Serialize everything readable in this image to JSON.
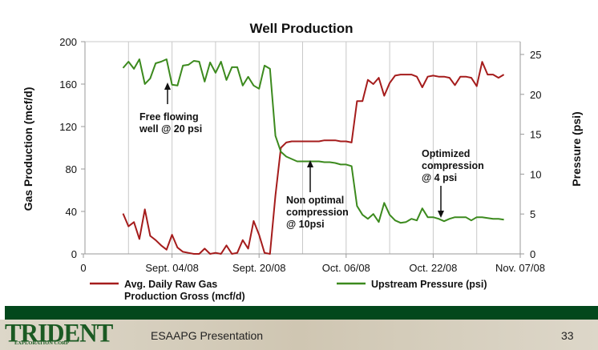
{
  "chart_data": {
    "type": "line",
    "title": "Well Production",
    "ylabel": "Gas Production (mcf/d)",
    "y2label": "Pressure (psi)",
    "ylim": [
      0,
      200
    ],
    "y2lim": [
      0,
      25
    ],
    "yticks": [
      "0",
      "40",
      "80",
      "120",
      "160",
      "200"
    ],
    "y2ticks": [
      "0",
      "5",
      "10",
      "15",
      "20",
      "25"
    ],
    "xlim": [
      "2008-08-19",
      "2008-11-07"
    ],
    "xticks": [
      "0",
      "Sept. 04/08",
      "Sept. 20/08",
      "Oct. 06/08",
      "Oct. 22/08",
      "Nov. 07/08"
    ],
    "grid": "vertical",
    "legend_position": "bottom",
    "x": [
      "2008-08-26",
      "2008-08-27",
      "2008-08-28",
      "2008-08-29",
      "2008-08-30",
      "2008-08-31",
      "2008-09-01",
      "2008-09-02",
      "2008-09-03",
      "2008-09-04",
      "2008-09-05",
      "2008-09-06",
      "2008-09-07",
      "2008-09-08",
      "2008-09-09",
      "2008-09-10",
      "2008-09-11",
      "2008-09-12",
      "2008-09-13",
      "2008-09-14",
      "2008-09-15",
      "2008-09-16",
      "2008-09-17",
      "2008-09-18",
      "2008-09-19",
      "2008-09-20",
      "2008-09-21",
      "2008-09-22",
      "2008-09-23",
      "2008-09-24",
      "2008-09-25",
      "2008-09-26",
      "2008-09-27",
      "2008-09-28",
      "2008-09-29",
      "2008-09-30",
      "2008-10-01",
      "2008-10-02",
      "2008-10-03",
      "2008-10-04",
      "2008-10-05",
      "2008-10-06",
      "2008-10-07",
      "2008-10-08",
      "2008-10-09",
      "2008-10-10",
      "2008-10-11",
      "2008-10-12",
      "2008-10-13",
      "2008-10-14",
      "2008-10-15",
      "2008-10-16",
      "2008-10-17",
      "2008-10-18",
      "2008-10-19",
      "2008-10-20",
      "2008-10-21",
      "2008-10-22",
      "2008-10-23",
      "2008-10-24",
      "2008-10-25",
      "2008-10-26",
      "2008-10-27",
      "2008-10-28",
      "2008-10-29",
      "2008-10-30",
      "2008-10-31",
      "2008-11-01",
      "2008-11-02",
      "2008-11-03",
      "2008-11-04"
    ],
    "series": [
      {
        "name": "Avg. Daily Raw Gas Production Gross (mcf/d)",
        "axis": "left",
        "color": "#a51c1c",
        "values": [
          38,
          26,
          30,
          14,
          42,
          17,
          13,
          8,
          4,
          18,
          6,
          2,
          1,
          0,
          0,
          5,
          0,
          1,
          0,
          8,
          0,
          1,
          13,
          5,
          31,
          18,
          1,
          0,
          55,
          100,
          105,
          106,
          106,
          106,
          106,
          106,
          106,
          107,
          107,
          107,
          106,
          106,
          105,
          144,
          144,
          164,
          160,
          166,
          149,
          161,
          168,
          169,
          169,
          169,
          167,
          157,
          167,
          168,
          167,
          167,
          166,
          159,
          167,
          167,
          166,
          158,
          181,
          169,
          169,
          166,
          169
        ]
      },
      {
        "name": "Upstream Pressure (psi)",
        "axis": "right",
        "color": "#3c8a1e",
        "values": [
          23.3,
          24.1,
          23.2,
          24.4,
          21.3,
          22.0,
          23.9,
          24.1,
          24.4,
          21.2,
          21.1,
          23.6,
          23.7,
          24.2,
          24.1,
          21.6,
          24.0,
          22.7,
          24.1,
          21.8,
          23.4,
          23.4,
          21.1,
          22.2,
          21.1,
          20.7,
          23.6,
          23.2,
          14.8,
          12.8,
          12.2,
          11.9,
          11.6,
          11.6,
          11.6,
          11.6,
          11.6,
          11.5,
          11.5,
          11.4,
          11.2,
          11.2,
          11.0,
          6.0,
          4.9,
          4.4,
          5.0,
          4.0,
          6.4,
          4.9,
          4.2,
          3.9,
          4.0,
          4.4,
          4.2,
          5.7,
          4.6,
          4.6,
          4.4,
          4.1,
          4.4,
          4.6,
          4.6,
          4.6,
          4.2,
          4.6,
          4.6,
          4.5,
          4.4,
          4.4,
          4.3
        ]
      }
    ],
    "annotations": [
      {
        "lines": [
          "Free flowing",
          "well @ 20 psi"
        ],
        "date": "2008-09-02"
      },
      {
        "lines": [
          "Non optimal",
          "compression",
          "@ 10psi"
        ],
        "date": "2008-09-29"
      },
      {
        "lines": [
          "Optimized",
          "compression",
          "@ 4 psi"
        ],
        "date": "2008-10-23"
      }
    ]
  },
  "footer": {
    "logo_text": "TRIDENT",
    "logo_subtext": "EXPLORATION CORP",
    "presentation": "ESAAPG Presentation",
    "page_number": "33",
    "band_color": "#03481c"
  }
}
